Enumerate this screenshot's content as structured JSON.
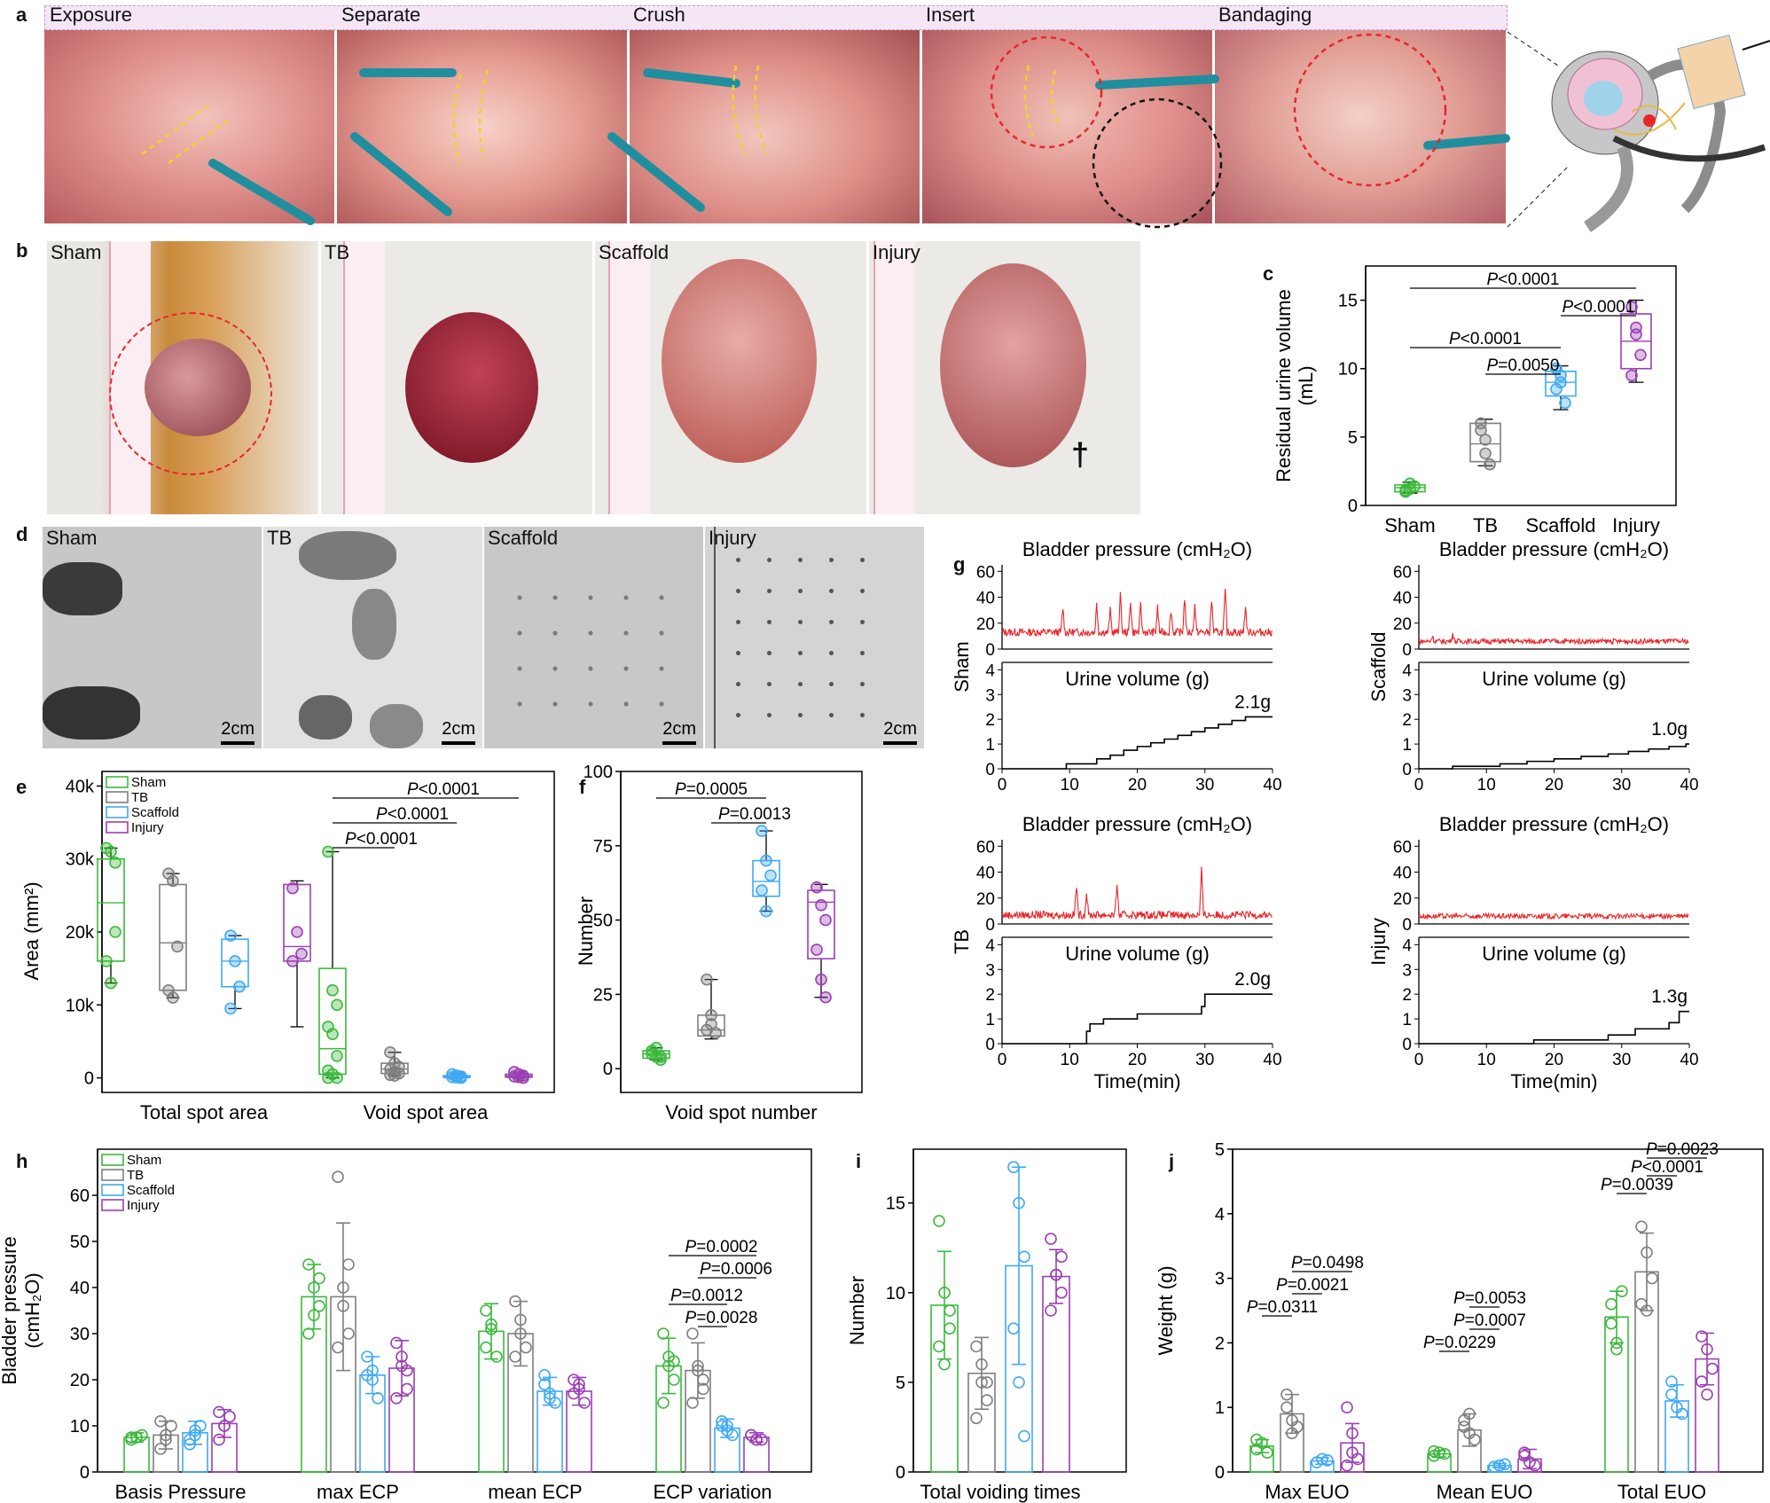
{
  "panels": {
    "a": "a",
    "b": "b",
    "c": "c",
    "d": "d",
    "e": "e",
    "f": "f",
    "g": "g",
    "h": "h",
    "i": "i",
    "j": "j"
  },
  "surgery_steps": [
    "Exposure",
    "Separate",
    "Crush",
    "Insert",
    "Bandaging"
  ],
  "bladder_photos": [
    "Sham",
    "TB",
    "Scaffold",
    "Injury"
  ],
  "dagger": "†",
  "void_photos": [
    "Sham",
    "TB",
    "Scaffold",
    "Injury"
  ],
  "scale_label": "2cm",
  "colors": {
    "Sham": "#3cb93c",
    "TB": "#7f7f7f",
    "Scaffold": "#3fa9f5",
    "Injury": "#9b3fb3",
    "trace": "#e8262a"
  },
  "chart_data": [
    {
      "id": "c",
      "type": "box",
      "ylabel": [
        "Residual urine volume",
        "(mL)"
      ],
      "ylim": [
        0,
        17.5
      ],
      "yticks": [
        0,
        5,
        10,
        15
      ],
      "categories": [
        "Sham",
        "TB",
        "Scaffold",
        "Injury"
      ],
      "points": [
        [
          1.0,
          1.2,
          1.4,
          1.1,
          1.6
        ],
        [
          6.0,
          4.8,
          3.0,
          5.5,
          3.8
        ],
        [
          10.0,
          9.5,
          7.5,
          8.5,
          9.0
        ],
        [
          14.5,
          13.0,
          11.0,
          9.5,
          12.5
        ]
      ],
      "boxes": [
        [
          0.9,
          1.0,
          1.3,
          1.5,
          1.7
        ],
        [
          2.9,
          3.2,
          4.5,
          6.0,
          6.3
        ],
        [
          7.0,
          8.0,
          9.0,
          9.8,
          10.2
        ],
        [
          9.0,
          10.0,
          12.0,
          14.0,
          15.0
        ]
      ],
      "brackets": [
        {
          "from": 0,
          "to": 3,
          "label": "P<0.0001"
        },
        {
          "from": 2,
          "to": 3,
          "label": "P<0.0001"
        },
        {
          "from": 0,
          "to": 2,
          "label": "P<0.0001"
        },
        {
          "from": 1,
          "to": 2,
          "label": "P=0.0050"
        }
      ]
    },
    {
      "id": "e",
      "type": "box",
      "ylabel": [
        "Area (mm²)"
      ],
      "ylim": [
        -2000,
        42000
      ],
      "yticks": [
        0,
        10000,
        20000,
        30000,
        40000
      ],
      "ytick_labels": [
        "0",
        "10k",
        "20k",
        "30k",
        "40k"
      ],
      "groups": [
        "Total spot area",
        "Void spot area"
      ],
      "legend": [
        "Sham",
        "TB",
        "Scaffold",
        "Injury"
      ],
      "points": [
        [
          [
            31500,
            31000,
            29500,
            16000,
            13000,
            20000
          ],
          [
            28000,
            27000,
            18000,
            12000,
            11000
          ],
          [
            19500,
            16000,
            12500,
            9500
          ],
          [
            26000,
            20000,
            17000,
            16000
          ]
        ],
        [
          [
            31000,
            12000,
            10000,
            7000,
            6000,
            3000,
            1000,
            500,
            0,
            0
          ],
          [
            3500,
            2000,
            1500,
            1200,
            800,
            600,
            400,
            300
          ],
          [
            500,
            300,
            200,
            100,
            50,
            0
          ],
          [
            800,
            500,
            300,
            200,
            100,
            0
          ]
        ]
      ],
      "boxes": [
        [
          [
            13000,
            16000,
            24000,
            30000,
            31500
          ],
          [
            11000,
            12000,
            18500,
            26500,
            28000
          ],
          [
            9500,
            12500,
            16000,
            19000,
            19500
          ],
          [
            7000,
            16000,
            18000,
            26500,
            27000
          ]
        ],
        [
          [
            0,
            500,
            4000,
            15000,
            31000
          ],
          [
            300,
            600,
            1200,
            2000,
            3500
          ],
          [
            0,
            50,
            150,
            300,
            500
          ],
          [
            0,
            100,
            250,
            500,
            800
          ]
        ]
      ],
      "brackets": [
        {
          "from": 0,
          "to": 3,
          "label": "P<0.0001"
        },
        {
          "from": 0,
          "to": 2,
          "label": "P<0.0001"
        },
        {
          "from": 0,
          "to": 1,
          "label": "P<0.0001"
        }
      ]
    },
    {
      "id": "f",
      "type": "box",
      "ylabel": [
        "Number"
      ],
      "xlabel": "Void spot number",
      "ylim": [
        -8,
        100
      ],
      "yticks": [
        0,
        25,
        50,
        75,
        100
      ],
      "categories": [
        "Sham",
        "TB",
        "Scaffold",
        "Injury"
      ],
      "points": [
        [
          6,
          4,
          3,
          5,
          7,
          4
        ],
        [
          30,
          18,
          12,
          13,
          15
        ],
        [
          80,
          70,
          65,
          60,
          53
        ],
        [
          61,
          55,
          50,
          40,
          30,
          24
        ]
      ],
      "boxes": [
        [
          3,
          3.5,
          5,
          6,
          7
        ],
        [
          10,
          11,
          13,
          18,
          30
        ],
        [
          53,
          58,
          63,
          70,
          80
        ],
        [
          24,
          37,
          56,
          60,
          62
        ]
      ],
      "brackets": [
        {
          "from": 0,
          "to": 2,
          "label": "P=0.0005"
        },
        {
          "from": 1,
          "to": 2,
          "label": "P=0.0013"
        }
      ]
    },
    {
      "id": "g",
      "type": "line",
      "top_title": "Bladder pressure (cmH₂O)",
      "bottom_title": "Urine volume (g)",
      "xlabel": "Time(min)",
      "xlim": [
        0,
        40
      ],
      "xticks": [
        0,
        10,
        20,
        30,
        40
      ],
      "pressure_ylim": [
        0,
        65
      ],
      "pressure_yticks": [
        0,
        20,
        40,
        60
      ],
      "volume_ylim": [
        0,
        4.3
      ],
      "volume_yticks": [
        0,
        1,
        2,
        3,
        4
      ],
      "traces": [
        {
          "group": "Sham",
          "final": "2.1g",
          "baseline": 13,
          "noise": 3,
          "spikes": [
            [
              9,
              32
            ],
            [
              14,
              35
            ],
            [
              16,
              30
            ],
            [
              17.5,
              42
            ],
            [
              19,
              38
            ],
            [
              20.5,
              34
            ],
            [
              23,
              32
            ],
            [
              25,
              30
            ],
            [
              27,
              40
            ],
            [
              28.5,
              34
            ],
            [
              31,
              38
            ],
            [
              33,
              45
            ],
            [
              36,
              33
            ]
          ],
          "steps": [
            [
              9.5,
              0.2
            ],
            [
              14,
              0.4
            ],
            [
              16,
              0.55
            ],
            [
              18,
              0.75
            ],
            [
              20,
              0.9
            ],
            [
              22,
              1.05
            ],
            [
              24,
              1.2
            ],
            [
              26,
              1.35
            ],
            [
              28,
              1.5
            ],
            [
              30,
              1.65
            ],
            [
              32,
              1.8
            ],
            [
              34,
              1.95
            ],
            [
              36,
              2.1
            ]
          ]
        },
        {
          "group": "Scaffold",
          "final": "1.0g",
          "baseline": 6,
          "noise": 2,
          "spikes": [
            [
              2,
              10
            ],
            [
              5,
              12
            ]
          ],
          "steps": [
            [
              5,
              0.1
            ],
            [
              12,
              0.2
            ],
            [
              16,
              0.3
            ],
            [
              20,
              0.4
            ],
            [
              24,
              0.5
            ],
            [
              28,
              0.6
            ],
            [
              31,
              0.7
            ],
            [
              34,
              0.8
            ],
            [
              37,
              0.9
            ],
            [
              39.5,
              1.0
            ]
          ]
        },
        {
          "group": "TB",
          "final": "2.0g",
          "baseline": 7,
          "noise": 3,
          "spikes": [
            [
              11,
              30
            ],
            [
              12.5,
              24
            ],
            [
              17,
              32
            ],
            [
              29.5,
              42
            ]
          ],
          "steps": [
            [
              12.5,
              0.5
            ],
            [
              13,
              0.8
            ],
            [
              15,
              1.0
            ],
            [
              20,
              1.2
            ],
            [
              29.5,
              1.5
            ],
            [
              30,
              2.0
            ]
          ]
        },
        {
          "group": "Injury",
          "final": "1.3g",
          "baseline": 6,
          "noise": 2,
          "spikes": [],
          "steps": [
            [
              17,
              0.15
            ],
            [
              28,
              0.35
            ],
            [
              32,
              0.6
            ],
            [
              37,
              0.85
            ],
            [
              38.5,
              1.3
            ]
          ]
        }
      ]
    },
    {
      "id": "h",
      "type": "bar",
      "ylabel": [
        "Bladder pressure",
        "(cmH₂O)"
      ],
      "ylim": [
        0,
        70
      ],
      "yticks": [
        0,
        10,
        20,
        30,
        40,
        50,
        60
      ],
      "groups": [
        "Basis Pressure",
        "max ECP",
        "mean ECP",
        "ECP variation"
      ],
      "legend": [
        "Sham",
        "TB",
        "Scaffold",
        "Injury"
      ],
      "means": [
        [
          7.5,
          8,
          8.5,
          10.5
        ],
        [
          38,
          38,
          21,
          22.5
        ],
        [
          30.5,
          30,
          17.5,
          17.5
        ],
        [
          23,
          22,
          9.5,
          7.5
        ]
      ],
      "sd": [
        [
          1,
          3,
          2.5,
          3
        ],
        [
          7,
          16,
          4,
          6
        ],
        [
          6,
          7,
          3,
          3
        ],
        [
          6,
          6,
          2,
          1
        ]
      ],
      "points": [
        [
          [
            7,
            7.5,
            8,
            7.5,
            7.5
          ],
          [
            5,
            7,
            10,
            11,
            8
          ],
          [
            6,
            8,
            10,
            7,
            9
          ],
          [
            7,
            10,
            12,
            13,
            10
          ]
        ],
        [
          [
            45,
            40,
            36,
            30,
            34,
            42
          ],
          [
            64,
            40,
            30,
            27,
            36,
            45
          ],
          [
            25,
            20,
            16,
            21,
            22
          ],
          [
            28,
            23,
            18,
            16,
            25,
            22
          ]
        ],
        [
          [
            35,
            32,
            25,
            27,
            31
          ],
          [
            37,
            33,
            27,
            25,
            30
          ],
          [
            21,
            17,
            15,
            19,
            16
          ],
          [
            20,
            18,
            15,
            17,
            19
          ]
        ],
        [
          [
            30,
            25,
            20,
            15,
            23,
            24
          ],
          [
            30,
            23,
            18,
            15,
            22,
            20
          ],
          [
            10,
            9,
            8,
            11,
            10
          ],
          [
            8,
            7,
            7,
            8,
            7
          ]
        ]
      ],
      "brackets": [
        {
          "from": 0,
          "to": 3,
          "label": "P=0.0002"
        },
        {
          "from": 1,
          "to": 3,
          "label": "P=0.0006"
        },
        {
          "from": 0,
          "to": 2,
          "label": "P=0.0012"
        },
        {
          "from": 1,
          "to": 2,
          "label": "P=0.0028"
        }
      ]
    },
    {
      "id": "i",
      "type": "bar",
      "ylabel": [
        "Number"
      ],
      "ylim": [
        0,
        18
      ],
      "yticks": [
        0,
        5,
        10,
        15
      ],
      "groups": [
        "Total voiding times"
      ],
      "means": [
        [
          9.3,
          5.5,
          11.5,
          10.9
        ]
      ],
      "sd": [
        [
          3,
          2,
          5.5,
          1.5
        ]
      ],
      "points": [
        [
          [
            14,
            10,
            9,
            7,
            6,
            8
          ],
          [
            7,
            6,
            4,
            3,
            5,
            5
          ],
          [
            17,
            15,
            12,
            8,
            5,
            2
          ],
          [
            13,
            11,
            10,
            9,
            11,
            12
          ]
        ]
      ]
    },
    {
      "id": "j",
      "type": "bar",
      "ylabel": [
        "Weight (g)"
      ],
      "ylim": [
        0,
        5
      ],
      "yticks": [
        0,
        1,
        2,
        3,
        4,
        5
      ],
      "groups": [
        "Max EUO",
        "Mean EUO",
        "Total EUO"
      ],
      "means": [
        [
          0.4,
          0.9,
          0.17,
          0.45
        ],
        [
          0.28,
          0.65,
          0.1,
          0.2
        ],
        [
          2.4,
          3.1,
          1.1,
          1.75
        ]
      ],
      "sd": [
        [
          0.1,
          0.3,
          0.05,
          0.3
        ],
        [
          0.05,
          0.25,
          0.03,
          0.15
        ],
        [
          0.4,
          0.6,
          0.25,
          0.4
        ]
      ],
      "points": [
        [
          [
            0.35,
            0.45,
            0.3,
            0.5
          ],
          [
            1.2,
            0.8,
            0.7,
            1.0,
            0.6
          ],
          [
            0.15,
            0.2,
            0.18
          ],
          [
            1.0,
            0.6,
            0.2,
            0.1,
            0.3
          ]
        ],
        [
          [
            0.25,
            0.3,
            0.28,
            0.32
          ],
          [
            0.8,
            0.6,
            0.5,
            0.7,
            0.9
          ],
          [
            0.08,
            0.1,
            0.12
          ],
          [
            0.3,
            0.15,
            0.1,
            0.25
          ]
        ],
        [
          [
            2.6,
            2.0,
            2.8,
            2.3,
            1.9
          ],
          [
            3.8,
            3.4,
            3.0,
            2.6,
            2.5
          ],
          [
            1.4,
            1.0,
            0.9,
            1.2
          ],
          [
            2.1,
            1.9,
            1.6,
            1.4,
            1.2
          ]
        ]
      ],
      "brackets": [
        {
          "group": 2,
          "from": 1,
          "to": 3,
          "label": "P=0.0023"
        },
        {
          "group": 2,
          "from": 1,
          "to": 2,
          "label": "P<0.0001"
        },
        {
          "group": 2,
          "from": 0,
          "to": 1,
          "label": "P=0.0039"
        },
        {
          "group": 0,
          "from": 1,
          "to": 3,
          "label": "P=0.0498"
        },
        {
          "group": 0,
          "from": 1,
          "to": 2,
          "label": "P=0.0021"
        },
        {
          "group": 0,
          "from": 0,
          "to": 1,
          "label": "P=0.0311"
        },
        {
          "group": 1,
          "from": 1,
          "to": 2,
          "label": "P=0.0053"
        },
        {
          "group": 1,
          "from": 1,
          "to": 2,
          "label": "P=0.0007"
        },
        {
          "group": 1,
          "from": 0,
          "to": 1,
          "label": "P=0.0229"
        }
      ]
    }
  ]
}
